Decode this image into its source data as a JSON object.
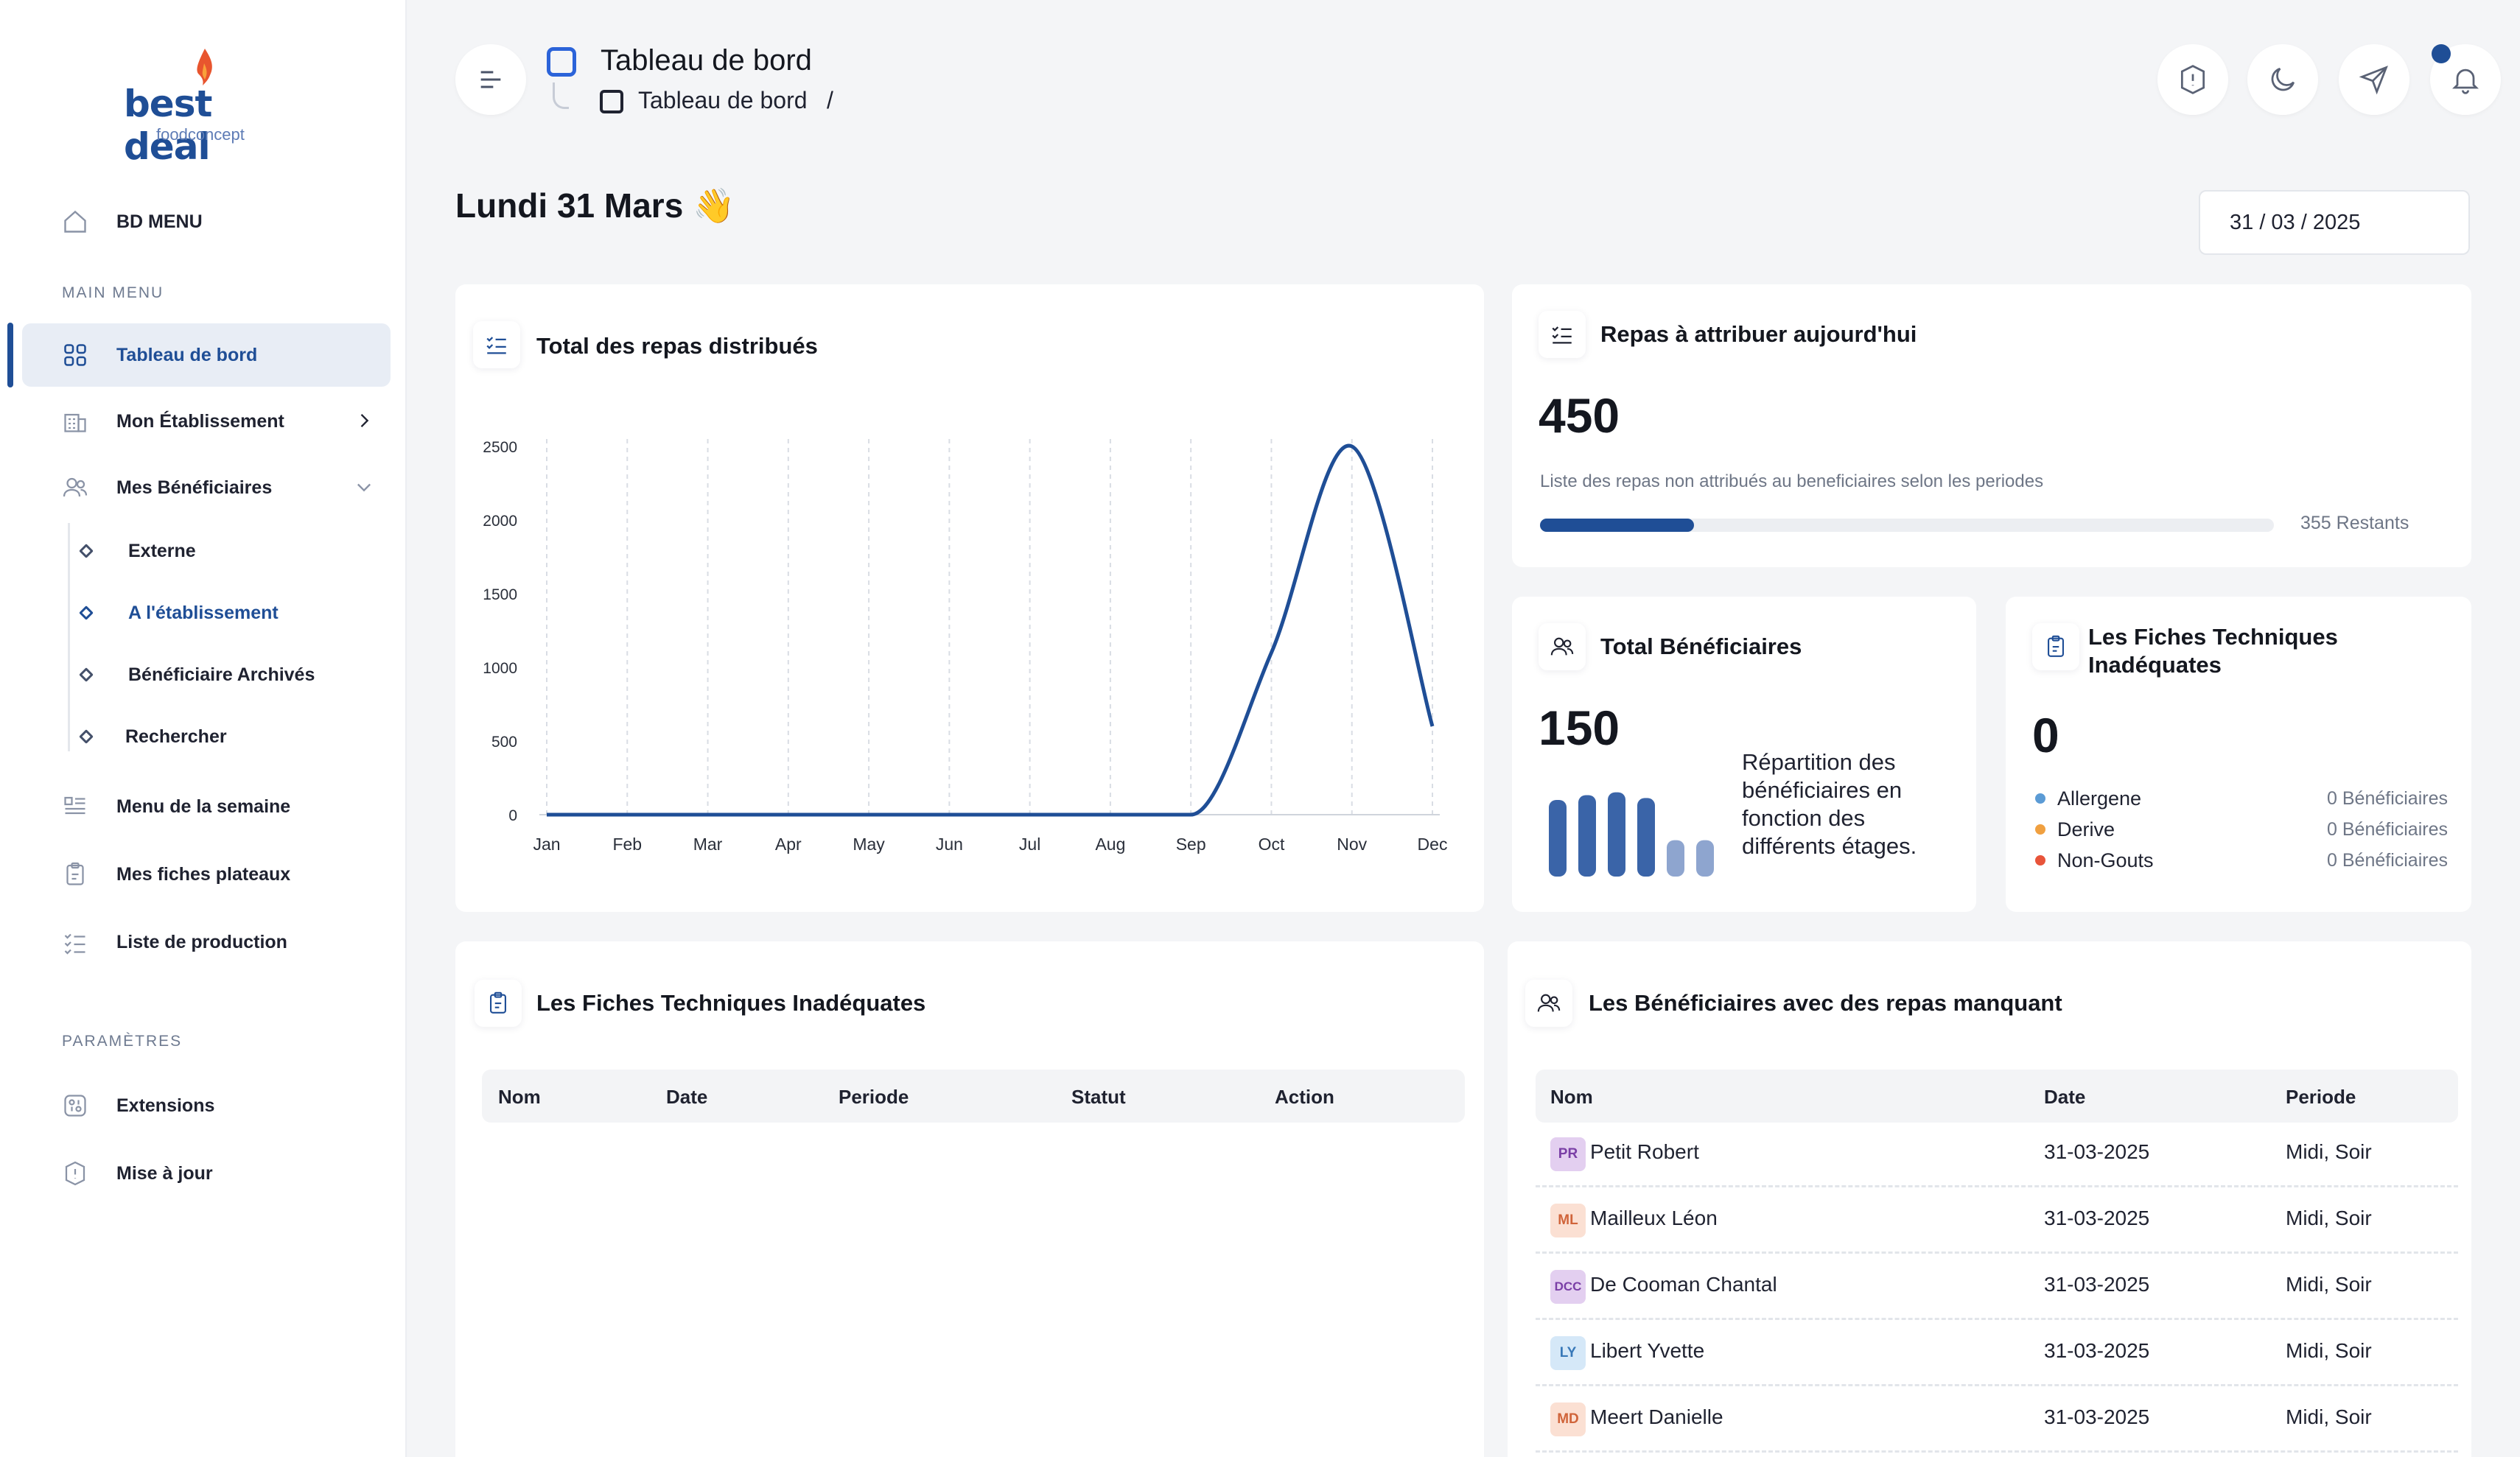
{
  "brand": {
    "name": "best deal",
    "tagline": "foodconcept"
  },
  "sidebar": {
    "top_item": "BD MENU",
    "main_menu_title": "MAIN MENU",
    "items": [
      {
        "label": "Tableau de bord",
        "icon": "grid-icon",
        "active": true
      },
      {
        "label": "Mon Établissement",
        "icon": "building-icon"
      },
      {
        "label": "Mes Bénéficiaires",
        "icon": "users-icon"
      }
    ],
    "beneficiaires_sub": [
      {
        "label": "Externe"
      },
      {
        "label": "A l'établissement",
        "active": true
      },
      {
        "label": "Bénéficiaire Archivés"
      },
      {
        "label": "Rechercher"
      }
    ],
    "items2": [
      {
        "label": "Menu de la semaine",
        "icon": "list-icon"
      },
      {
        "label": "Mes fiches plateaux",
        "icon": "clipboard-icon"
      },
      {
        "label": "Liste de production",
        "icon": "checklist-icon"
      }
    ],
    "params_title": "PARAMÈTRES",
    "params": [
      {
        "label": "Extensions",
        "icon": "extensions-icon"
      },
      {
        "label": "Mise à jour",
        "icon": "update-icon"
      }
    ]
  },
  "header": {
    "title": "Tableau de bord",
    "breadcrumb": "Tableau de bord",
    "breadcrumb_sep": "/"
  },
  "greeting": "Lundi 31 Mars 👋",
  "date_value": "31 / 03 / 2025",
  "chart_card": {
    "title": "Total des repas distribués",
    "chart_data": {
      "type": "line",
      "categories": [
        "Jan",
        "Feb",
        "Mar",
        "Apr",
        "May",
        "Jun",
        "Jul",
        "Aug",
        "Sep",
        "Oct",
        "Nov",
        "Dec"
      ],
      "series": [
        {
          "values": [
            0,
            0,
            0,
            0,
            0,
            0,
            0,
            0,
            0,
            1100,
            2500,
            600
          ]
        }
      ],
      "ylim": [
        0,
        2500
      ],
      "yticks": [
        0,
        500,
        1000,
        1500,
        2000,
        2500
      ],
      "line_color": "#1f4e96",
      "grid": "vertical-dashed"
    }
  },
  "repas_card": {
    "title": "Repas à attribuer aujourd'hui",
    "value": "450",
    "description": "Liste des repas non attribués au beneficiaires selon les periodes",
    "remaining": "355 Restants",
    "progress_fraction": 0.21
  },
  "benef_card": {
    "title": "Total Bénéficiaires",
    "value": "150",
    "description": "Répartition des bénéficiaires en fonction des différents étages.",
    "bars": [
      0.8,
      0.85,
      0.88,
      0.82,
      0.38,
      0.38
    ]
  },
  "fiches_card": {
    "title": "Les Fiches Techniques Inadéquates",
    "value": "0",
    "legend": [
      {
        "label": "Allergene",
        "value": "0 Bénéficiaires",
        "color": "#5b9bd5"
      },
      {
        "label": "Derive",
        "value": "0 Bénéficiaires",
        "color": "#f0a040"
      },
      {
        "label": "Non-Gouts",
        "value": "0 Bénéficiaires",
        "color": "#e8543a"
      }
    ]
  },
  "fiches_table": {
    "title": "Les Fiches Techniques Inadéquates",
    "columns": [
      "Nom",
      "Date",
      "Periode",
      "Statut",
      "Action"
    ]
  },
  "missing_table": {
    "title": "Les Bénéficiaires avec des repas manquant",
    "columns": [
      "Nom",
      "Date",
      "Periode"
    ],
    "rows": [
      {
        "initials": "PR",
        "name": "Petit  Robert",
        "date": "31-03-2025",
        "periode": "Midi, Soir",
        "bg": "#e3cff0",
        "fg": "#7a3fa6"
      },
      {
        "initials": "ML",
        "name": "Mailleux  Léon",
        "date": "31-03-2025",
        "periode": "Midi, Soir",
        "bg": "#fbe0d3",
        "fg": "#d0643a"
      },
      {
        "initials": "DCC",
        "name": "De Cooman  Chantal",
        "date": "31-03-2025",
        "periode": "Midi, Soir",
        "bg": "#e3cff0",
        "fg": "#7a3fa6"
      },
      {
        "initials": "LY",
        "name": "Libert  Yvette",
        "date": "31-03-2025",
        "periode": "Midi, Soir",
        "bg": "#d5e8f8",
        "fg": "#3878b8"
      },
      {
        "initials": "MD",
        "name": "Meert  Danielle",
        "date": "31-03-2025",
        "periode": "Midi, Soir",
        "bg": "#fbe0d3",
        "fg": "#d0643a"
      }
    ]
  }
}
